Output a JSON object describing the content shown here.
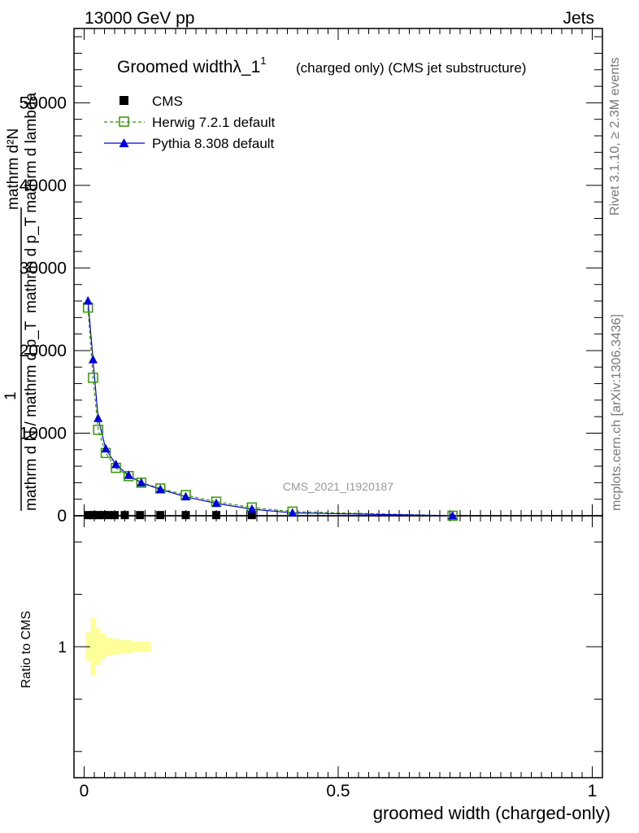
{
  "header": {
    "energy_label": "13000 GeV pp",
    "process_label": "Jets"
  },
  "side_labels": {
    "rivet": "Rivet 3.1.10, ≥ 2.3M events",
    "mcplots": "mcplots.cern.ch [arXiv:1306.3436]"
  },
  "chart_data": {
    "type": "line",
    "title_main": "Groomed widthλ_1",
    "title_sup": "1",
    "title_note": "(charged only) (CMS jet substructure)",
    "watermark": "CMS_2021_I1920187",
    "xlabel": "groomed width (charged-only)",
    "ylabel_upper_numerator": "mathrm d²N",
    "ylabel_upper_denominator": "mathrm d p_T mathrm d lambda",
    "ylabel_upper_1": "1",
    "ylabel_upper_lower": "mathrm d N / mathrm d p_T",
    "ylabel_ratio": "Ratio to CMS",
    "xlim": [
      -0.02,
      1.02
    ],
    "ylim": [
      0,
      59000
    ],
    "ratio_ylim": [
      0.5,
      1.5
    ],
    "x_ticks": [
      {
        "v": 0,
        "label": "0"
      },
      {
        "v": 0.5,
        "label": "0.5"
      },
      {
        "v": 1,
        "label": "1"
      }
    ],
    "y_ticks": [
      {
        "v": 0,
        "label": "0"
      },
      {
        "v": 10000,
        "label": "10000"
      },
      {
        "v": 20000,
        "label": "20000"
      },
      {
        "v": 30000,
        "label": "30000"
      },
      {
        "v": 40000,
        "label": "40000"
      },
      {
        "v": 50000,
        "label": "50000"
      }
    ],
    "ratio_ticks": [
      {
        "v": 1,
        "label": "1"
      }
    ],
    "legend_position": "top-left",
    "series": [
      {
        "name": "CMS",
        "color": "#000000",
        "marker": "filled-square",
        "x": [
          0.0075,
          0.0175,
          0.0275,
          0.0375,
          0.0475,
          0.06,
          0.08,
          0.11,
          0.15,
          0.2,
          0.26,
          0.33
        ],
        "values": [
          80,
          80,
          80,
          80,
          80,
          80,
          80,
          80,
          80,
          80,
          80,
          80
        ]
      },
      {
        "name": "Herwig 7.2.1 default",
        "color": "#339900",
        "marker": "open-square",
        "dashed": true,
        "x": [
          0.0075,
          0.0175,
          0.0275,
          0.0425,
          0.0625,
          0.0875,
          0.1125,
          0.15,
          0.2,
          0.26,
          0.33,
          0.41,
          0.725
        ],
        "values": [
          25200,
          16700,
          10400,
          7600,
          5800,
          4800,
          4000,
          3300,
          2500,
          1700,
          1000,
          500,
          0
        ]
      },
      {
        "name": "Pythia 8.308 default",
        "color": "#0000dd",
        "marker": "filled-triangle",
        "dashed": false,
        "x": [
          0.0075,
          0.0175,
          0.0275,
          0.0425,
          0.0625,
          0.0875,
          0.1125,
          0.15,
          0.2,
          0.26,
          0.33,
          0.41,
          0.725
        ],
        "values": [
          26000,
          18900,
          11800,
          8100,
          6200,
          4900,
          4000,
          3200,
          2300,
          1500,
          800,
          350,
          0
        ]
      }
    ],
    "ratio_band": {
      "color": "#ffff99",
      "x": [
        0.0075,
        0.0175,
        0.0275,
        0.0375,
        0.0475,
        0.06,
        0.08,
        0.11
      ],
      "values": [
        1,
        1,
        1,
        1,
        1,
        1,
        1,
        1
      ],
      "half_width": [
        0.055,
        0.11,
        0.07,
        0.05,
        0.035,
        0.03,
        0.025,
        0.02
      ]
    }
  }
}
